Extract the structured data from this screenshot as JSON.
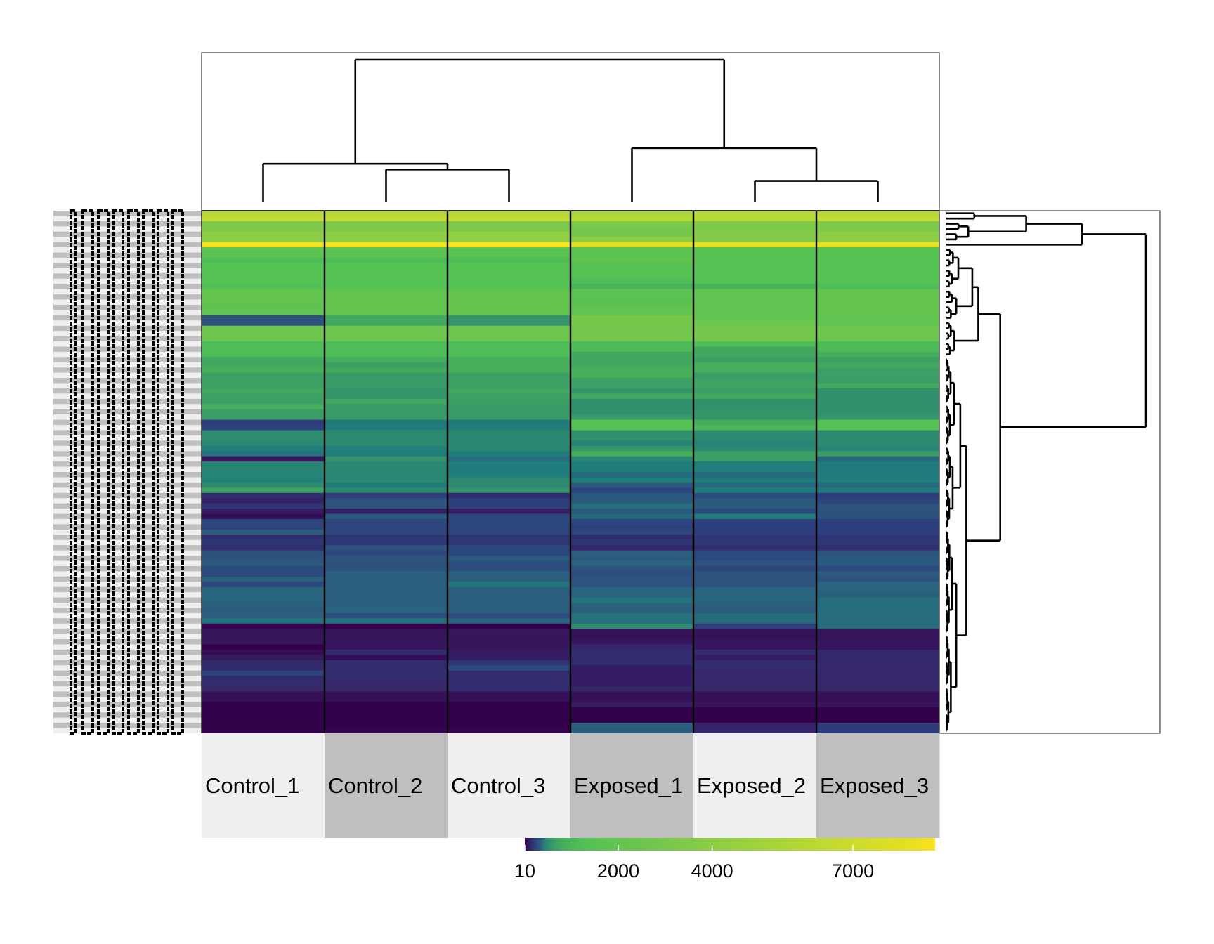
{
  "chart_data": {
    "type": "heatmap",
    "title": "",
    "columns": [
      "Control_1",
      "Control_2",
      "Control_3",
      "Exposed_1",
      "Exposed_2",
      "Exposed_3"
    ],
    "column_annotation_colors": [
      "#efefef",
      "#bfbfbf",
      "#efefef",
      "#bfbfbf",
      "#efefef",
      "#bfbfbf"
    ],
    "row_label_stripe_colors": [
      "#bfbfbf",
      "#efefef"
    ],
    "row_count": 100,
    "legend": {
      "range": [
        10,
        8750
      ],
      "ticks": [
        "10",
        "2000",
        "4000",
        "7000"
      ],
      "tick_values": [
        10,
        2000,
        4000,
        7000
      ],
      "placement": "bottom"
    },
    "color_scale": [
      [
        10,
        "#33004a"
      ],
      [
        40,
        "#36135a"
      ],
      [
        90,
        "#36256a"
      ],
      [
        150,
        "#302e6e"
      ],
      [
        200,
        "#2e3c7c"
      ],
      [
        250,
        "#2d4a7f"
      ],
      [
        300,
        "#2d527d"
      ],
      [
        340,
        "#2a5f7e"
      ],
      [
        380,
        "#24737c"
      ],
      [
        420,
        "#1f7e7c"
      ],
      [
        470,
        "#2d8a70"
      ],
      [
        550,
        "#36946a"
      ],
      [
        650,
        "#3d9f64"
      ],
      [
        800,
        "#45ad5d"
      ],
      [
        1100,
        "#4cbb58"
      ],
      [
        1400,
        "#55c254"
      ],
      [
        2000,
        "#62c44f"
      ],
      [
        2900,
        "#75c64c"
      ],
      [
        4000,
        "#8dcd45"
      ],
      [
        6000,
        "#b5d934"
      ],
      [
        6600,
        "#c4da33"
      ],
      [
        8000,
        "#e0df22"
      ],
      [
        8750,
        "#f9e21e"
      ]
    ],
    "matrix": [
      [
        6000,
        6000,
        6000,
        5400,
        6000,
        6000
      ],
      [
        6500,
        6500,
        6500,
        6000,
        6000,
        6500
      ],
      [
        3300,
        3300,
        3300,
        3300,
        3300,
        3300
      ],
      [
        3300,
        3300,
        3300,
        2900,
        3300,
        3300
      ],
      [
        4000,
        4000,
        4300,
        2900,
        3600,
        4000
      ],
      [
        4000,
        4000,
        4300,
        4000,
        3600,
        4000
      ],
      [
        8700,
        8700,
        8750,
        7900,
        8100,
        8200
      ],
      [
        1700,
        1700,
        1600,
        1700,
        1400,
        1400
      ],
      [
        1700,
        1700,
        1600,
        1700,
        1400,
        1400
      ],
      [
        1200,
        1200,
        1200,
        2000,
        1400,
        1400
      ],
      [
        1400,
        1400,
        1400,
        1500,
        1400,
        1400
      ],
      [
        1400,
        1400,
        1400,
        1500,
        1400,
        1400
      ],
      [
        1400,
        1400,
        1400,
        1500,
        1400,
        1400
      ],
      [
        1400,
        1400,
        1400,
        1200,
        1400,
        1400
      ],
      [
        1300,
        1400,
        1400,
        900,
        900,
        1200
      ],
      [
        2000,
        2000,
        2000,
        1700,
        1900,
        2000
      ],
      [
        2000,
        2000,
        2000,
        1700,
        1900,
        2000
      ],
      [
        2000,
        2000,
        2000,
        1500,
        1900,
        2000
      ],
      [
        1700,
        2000,
        2000,
        2000,
        1900,
        2000
      ],
      [
        2000,
        2000,
        2000,
        2000,
        1900,
        2000
      ],
      [
        300,
        750,
        550,
        3000,
        1900,
        1900
      ],
      [
        300,
        750,
        550,
        3000,
        2500,
        1900
      ],
      [
        2500,
        2500,
        2500,
        2900,
        2900,
        2500
      ],
      [
        2500,
        2500,
        2500,
        2900,
        2900,
        2500
      ],
      [
        2500,
        2500,
        2500,
        2900,
        2900,
        2500
      ],
      [
        1200,
        1200,
        1200,
        1100,
        1150,
        1100
      ],
      [
        1200,
        1200,
        1200,
        1100,
        750,
        1100
      ],
      [
        1200,
        1200,
        1200,
        750,
        750,
        850
      ],
      [
        750,
        800,
        850,
        750,
        650,
        650
      ],
      [
        750,
        650,
        850,
        750,
        850,
        750
      ],
      [
        850,
        750,
        850,
        850,
        850,
        650
      ],
      [
        650,
        600,
        650,
        850,
        620,
        650
      ],
      [
        650,
        600,
        650,
        650,
        680,
        620
      ],
      [
        650,
        600,
        650,
        650,
        680,
        750
      ],
      [
        750,
        550,
        750,
        550,
        620,
        520
      ],
      [
        650,
        550,
        650,
        750,
        750,
        520
      ],
      [
        650,
        750,
        650,
        520,
        520,
        520
      ],
      [
        850,
        600,
        600,
        520,
        520,
        520
      ],
      [
        620,
        600,
        600,
        520,
        550,
        520
      ],
      [
        620,
        600,
        600,
        600,
        550,
        550
      ],
      [
        200,
        400,
        400,
        1400,
        800,
        1400
      ],
      [
        220,
        420,
        420,
        1400,
        1000,
        1400
      ],
      [
        480,
        470,
        460,
        520,
        470,
        470
      ],
      [
        480,
        470,
        460,
        520,
        470,
        470
      ],
      [
        460,
        470,
        460,
        440,
        440,
        470
      ],
      [
        420,
        430,
        460,
        560,
        460,
        440
      ],
      [
        380,
        420,
        420,
        850,
        620,
        620
      ],
      [
        50,
        540,
        370,
        460,
        620,
        360
      ],
      [
        450,
        460,
        420,
        420,
        410,
        410
      ],
      [
        450,
        460,
        420,
        420,
        430,
        410
      ],
      [
        450,
        460,
        420,
        360,
        360,
        410
      ],
      [
        430,
        460,
        470,
        410,
        410,
        420
      ],
      [
        480,
        420,
        470,
        320,
        360,
        360
      ],
      [
        680,
        470,
        540,
        230,
        420,
        410
      ],
      [
        150,
        200,
        150,
        320,
        250,
        200
      ],
      [
        80,
        300,
        210,
        320,
        320,
        230
      ],
      [
        180,
        300,
        210,
        370,
        320,
        300
      ],
      [
        60,
        70,
        70,
        320,
        250,
        300
      ],
      [
        30,
        330,
        240,
        360,
        420,
        300
      ],
      [
        230,
        240,
        240,
        235,
        210,
        210
      ],
      [
        230,
        240,
        240,
        210,
        210,
        210
      ],
      [
        330,
        240,
        240,
        235,
        210,
        210
      ],
      [
        150,
        180,
        180,
        150,
        180,
        180
      ],
      [
        180,
        180,
        180,
        180,
        180,
        180
      ],
      [
        150,
        300,
        240,
        90,
        150,
        150
      ],
      [
        300,
        240,
        240,
        340,
        250,
        300
      ],
      [
        300,
        300,
        320,
        320,
        250,
        320
      ],
      [
        320,
        300,
        260,
        350,
        300,
        320
      ],
      [
        250,
        300,
        260,
        300,
        240,
        250
      ],
      [
        250,
        340,
        340,
        260,
        300,
        320
      ],
      [
        340,
        340,
        340,
        300,
        300,
        300
      ],
      [
        240,
        340,
        390,
        300,
        300,
        350
      ],
      [
        350,
        340,
        340,
        350,
        350,
        350
      ],
      [
        350,
        340,
        340,
        350,
        350,
        340
      ],
      [
        350,
        340,
        340,
        375,
        350,
        365
      ],
      [
        340,
        340,
        340,
        350,
        340,
        365
      ],
      [
        320,
        350,
        340,
        340,
        320,
        365
      ],
      [
        340,
        260,
        260,
        375,
        365,
        365
      ],
      [
        380,
        380,
        350,
        375,
        365,
        365
      ],
      [
        15,
        12,
        12,
        480,
        210,
        365
      ],
      [
        40,
        40,
        50,
        40,
        40,
        45
      ],
      [
        45,
        45,
        45,
        35,
        35,
        45
      ],
      [
        45,
        45,
        45,
        45,
        45,
        45
      ],
      [
        10,
        45,
        45,
        90,
        45,
        45
      ],
      [
        30,
        130,
        65,
        130,
        130,
        100
      ],
      [
        60,
        30,
        65,
        130,
        65,
        100
      ],
      [
        120,
        130,
        180,
        130,
        130,
        100
      ],
      [
        130,
        130,
        250,
        65,
        130,
        95
      ],
      [
        220,
        130,
        130,
        65,
        95,
        95
      ],
      [
        130,
        130,
        130,
        65,
        95,
        95
      ],
      [
        130,
        95,
        130,
        65,
        95,
        95
      ],
      [
        95,
        95,
        130,
        95,
        95,
        95
      ],
      [
        35,
        35,
        35,
        35,
        35,
        35
      ],
      [
        35,
        35,
        35,
        35,
        35,
        35
      ],
      [
        10,
        10,
        10,
        65,
        45,
        45
      ],
      [
        10,
        10,
        10,
        10,
        10,
        10
      ],
      [
        10,
        10,
        10,
        10,
        10,
        10
      ],
      [
        10,
        10,
        10,
        10,
        10,
        10
      ],
      [
        10,
        10,
        10,
        340,
        90,
        200
      ],
      [
        10,
        18,
        18,
        330,
        90,
        200
      ]
    ],
    "column_dendrogram": {
      "height": 1.0,
      "children": [
        {
          "height": 0.27,
          "children": [
            {
              "col": 0
            },
            {
              "height": 0.23,
              "children": [
                {
                  "col": 1
                },
                {
                  "col": 2
                }
              ]
            }
          ]
        },
        {
          "height": 0.38,
          "children": [
            {
              "col": 3
            },
            {
              "height": 0.15,
              "children": [
                {
                  "col": 4
                },
                {
                  "col": 5
                }
              ]
            }
          ]
        }
      ]
    },
    "row_dendrogram": {
      "height": 1.0,
      "children": [
        {
          "height": 0.68,
          "children": [
            {
              "height": 0.4,
              "children": [
                {
                  "rows": [
                    0,
                    1
                  ],
                  "height": 0.14
                },
                {
                  "rows": [
                    2,
                    5
                  ],
                  "height": 0.11
                }
              ]
            },
            {
              "row": 6
            }
          ]
        },
        {
          "height": 0.27,
          "children": [
            {
              "height": 0.16,
              "children": [
                {
                  "height": 0.13,
                  "children": [
                    {
                      "rows": [
                        7,
                        14
                      ],
                      "height": 0.06
                    },
                    {
                      "rows": [
                        15,
                        20
                      ],
                      "height": 0.05
                    }
                  ]
                },
                {
                  "rows": [
                    21,
                    27
                  ],
                  "height": 0.04
                }
              ]
            },
            {
              "height": 0.1,
              "children": [
                {
                  "rows": [
                    28,
                    60
                  ],
                  "height": 0.07
                },
                {
                  "rows": [
                    61,
                    99
                  ],
                  "height": 0.05
                }
              ]
            }
          ]
        }
      ]
    }
  }
}
